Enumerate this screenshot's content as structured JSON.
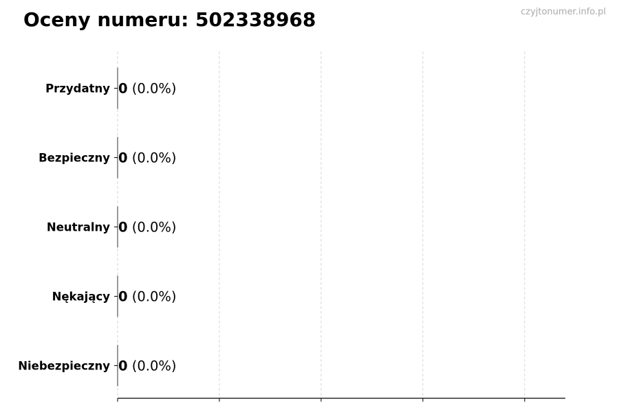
{
  "title": "Oceny numeru: 502338968",
  "watermark": "czyjtonumer.info.pl",
  "chart_data": {
    "type": "bar",
    "orientation": "horizontal",
    "title": "Oceny numeru: 502338968",
    "categories": [
      "Przydatny",
      "Bezpieczny",
      "Neutralny",
      "Nękający",
      "Niebezpieczny"
    ],
    "values": [
      0,
      0,
      0,
      0,
      0
    ],
    "data_labels": [
      "0 (0.0%)",
      "0 (0.0%)",
      "0 (0.0%)",
      "0 (0.0%)",
      "0 (0.0%)"
    ],
    "xlim": [
      0,
      4.4
    ],
    "xticks": [
      0,
      1,
      2,
      3,
      4
    ],
    "xtick_labels_shown": false,
    "grid": "x-dashed",
    "xlabel": "",
    "ylabel": ""
  }
}
